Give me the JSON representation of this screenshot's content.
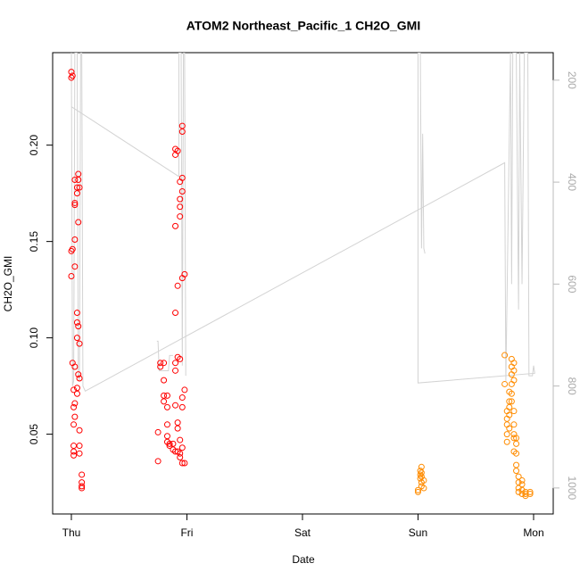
{
  "chart_data": {
    "type": "scatter",
    "title": "ATOM2 Northeast_Pacific_1 CH2O_GMI",
    "x_label": "Date",
    "y_label": "CH2O_GMI",
    "xlim": [
      -0.162,
      4.17
    ],
    "ylim": [
      0.0086,
      0.248
    ],
    "y2lim": [
      1051,
      146
    ],
    "xticks": [
      {
        "value": 0,
        "label": "Thu"
      },
      {
        "value": 1,
        "label": "Fri"
      },
      {
        "value": 2,
        "label": "Sat"
      },
      {
        "value": 3,
        "label": "Sun"
      },
      {
        "value": 4,
        "label": "Mon"
      }
    ],
    "yticks": [
      0.05,
      {
        "value": 0.1,
        "label": "0.10"
      },
      0.15,
      {
        "value": 0.2,
        "label": "0.20"
      }
    ],
    "y2ticks": [
      200,
      400,
      600,
      800,
      1000
    ],
    "grid": false,
    "series": [
      {
        "type": "scatter",
        "color": "#ff0000",
        "x": [
          0,
          0,
          0,
          0,
          0.01,
          0.01,
          0.01,
          0.02,
          0.02,
          0.02,
          0.02,
          0.02,
          0.02,
          0.03,
          0.03,
          0.03,
          0.03,
          0.03,
          0.03,
          0.03,
          0.03,
          0.05,
          0.05,
          0.05,
          0.05,
          0.05,
          0.05,
          0.05,
          0.06,
          0.06,
          0.06,
          0.06,
          0.06,
          0.07,
          0.07,
          0.07,
          0.07,
          0.07,
          0.07,
          0.09,
          0.09,
          0.09,
          0.09,
          0.75,
          0.75,
          0.77,
          0.77,
          0.8,
          0.8,
          0.8,
          0.8,
          0.83,
          0.83,
          0.83,
          0.83,
          0.83,
          0.85,
          0.85,
          0.88,
          0.88,
          0.9,
          0.9,
          0.9,
          0.9,
          0.9,
          0.9,
          0.9,
          0.9,
          0.92,
          0.92,
          0.92,
          0.92,
          0.92,
          0.92,
          0.94,
          0.94,
          0.94,
          0.94,
          0.94,
          0.94,
          0.94,
          0.94,
          0.96,
          0.96,
          0.96,
          0.96,
          0.96,
          0.96,
          0.96,
          0.96,
          0.96,
          0.98,
          0.98,
          0.98
        ],
        "values": [
          0.238,
          0.235,
          0.145,
          0.132,
          0.236,
          0.146,
          0.087,
          0.073,
          0.064,
          0.055,
          0.044,
          0.041,
          0.039,
          0.182,
          0.17,
          0.169,
          0.151,
          0.137,
          0.085,
          0.066,
          0.059,
          0.178,
          0.175,
          0.113,
          0.108,
          0.1,
          0.074,
          0.071,
          0.185,
          0.182,
          0.16,
          0.106,
          0.081,
          0.178,
          0.097,
          0.079,
          0.052,
          0.044,
          0.04,
          0.029,
          0.025,
          0.023,
          0.022,
          0.051,
          0.036,
          0.085,
          0.087,
          0.087,
          0.078,
          0.07,
          0.067,
          0.07,
          0.064,
          0.055,
          0.049,
          0.046,
          0.045,
          0.044,
          0.045,
          0.042,
          0.198,
          0.195,
          0.158,
          0.113,
          0.087,
          0.083,
          0.065,
          0.041,
          0.197,
          0.127,
          0.09,
          0.056,
          0.053,
          0.041,
          0.181,
          0.172,
          0.168,
          0.163,
          0.089,
          0.047,
          0.04,
          0.038,
          0.21,
          0.207,
          0.183,
          0.176,
          0.131,
          0.069,
          0.064,
          0.043,
          0.035,
          0.133,
          0.073,
          0.035
        ]
      },
      {
        "type": "scatter",
        "color": "#ff8c00",
        "x": [
          3,
          3,
          3.02,
          3.02,
          3.02,
          3.03,
          3.03,
          3.03,
          3.03,
          3.03,
          3.05,
          3.05,
          3.75,
          3.75,
          3.77,
          3.77,
          3.77,
          3.77,
          3.77,
          3.79,
          3.79,
          3.79,
          3.79,
          3.79,
          3.81,
          3.81,
          3.81,
          3.81,
          3.81,
          3.81,
          3.83,
          3.83,
          3.83,
          3.83,
          3.83,
          3.83,
          3.83,
          3.83,
          3.85,
          3.85,
          3.85,
          3.85,
          3.85,
          3.87,
          3.87,
          3.87,
          3.87,
          3.9,
          3.9,
          3.9,
          3.9,
          3.93,
          3.93,
          3.93,
          3.97,
          3.97
        ],
        "values": [
          0.02,
          0.021,
          0.027,
          0.029,
          0.031,
          0.033,
          0.03,
          0.028,
          0.025,
          0.023,
          0.022,
          0.026,
          0.091,
          0.076,
          0.062,
          0.058,
          0.055,
          0.05,
          0.046,
          0.072,
          0.067,
          0.064,
          0.06,
          0.053,
          0.089,
          0.085,
          0.081,
          0.076,
          0.071,
          0.067,
          0.087,
          0.083,
          0.078,
          0.062,
          0.055,
          0.05,
          0.048,
          0.041,
          0.048,
          0.045,
          0.04,
          0.034,
          0.031,
          0.028,
          0.025,
          0.022,
          0.02,
          0.026,
          0.024,
          0.021,
          0.019,
          0.02,
          0.019,
          0.018,
          0.019,
          0.02
        ]
      },
      {
        "type": "line",
        "axis": "y2",
        "color": "#d3d3d3",
        "x": [
          0,
          0.01,
          0.02,
          0.03,
          0.05,
          0.06,
          0.07,
          0.08,
          0.09,
          0.1,
          0.12,
          3.75,
          3.76,
          3.8,
          3.81,
          3.82,
          3.85,
          3.87,
          3.88,
          3.9,
          3.92,
          3.95,
          3.96,
          3.99,
          4,
          4.01,
          3,
          3,
          3.02,
          3.03,
          3.04,
          3.05,
          3.06,
          0.5,
          0,
          0.93,
          0.93,
          0.95,
          0.96,
          0.97,
          0.98,
          0.99,
          0.6,
          0.74,
          0.75,
          0.76,
          0.84,
          0.85,
          0.88
        ],
        "values": [
          146,
          800,
          790,
          146,
          146,
          780,
          790,
          146,
          146,
          800,
          810,
          362,
          790,
          146,
          600,
          146,
          146,
          650,
          146,
          600,
          146,
          146,
          780,
          780,
          760,
          775,
          794,
          146,
          146,
          530,
          305,
          530,
          540,
          null,
          252,
          389,
          146,
          146,
          760,
          146,
          146,
          780,
          null,
          712,
          712,
          770,
          770,
          740,
          740
        ]
      }
    ]
  }
}
